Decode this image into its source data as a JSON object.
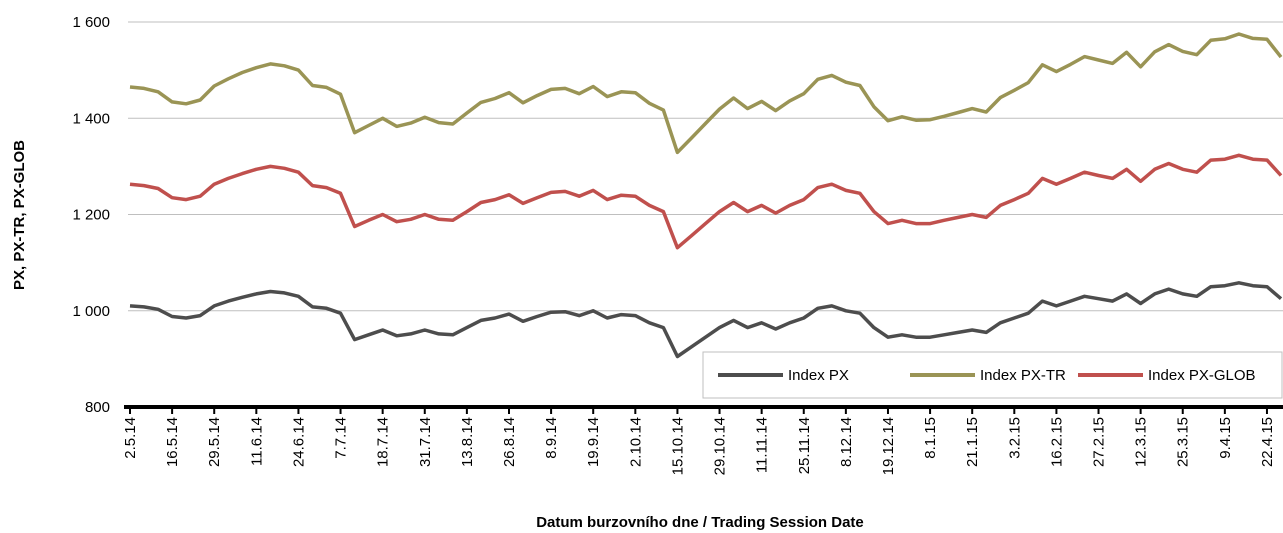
{
  "chart_data": {
    "type": "line",
    "x_label": "Datum burzovního dne / Trading Session Date",
    "y_label": "PX, PX-TR, PX-GLOB",
    "categories": [
      "2.5.14",
      null,
      null,
      "16.5.14",
      null,
      null,
      "29.5.14",
      null,
      null,
      "11.6.14",
      null,
      null,
      "24.6.14",
      null,
      null,
      "7.7.14",
      null,
      null,
      "18.7.14",
      null,
      null,
      "31.7.14",
      null,
      null,
      "13.8.14",
      null,
      null,
      "26.8.14",
      null,
      null,
      "8.9.14",
      null,
      null,
      "19.9.14",
      null,
      null,
      "2.10.14",
      null,
      null,
      "15.10.14",
      null,
      null,
      "29.10.14",
      null,
      null,
      "11.11.14",
      null,
      null,
      "25.11.14",
      null,
      null,
      "8.12.14",
      null,
      null,
      "19.12.14",
      null,
      null,
      "8.1.15",
      null,
      null,
      "21.1.15",
      null,
      null,
      "3.2.15",
      null,
      null,
      "16.2.15",
      null,
      null,
      "27.2.15",
      null,
      null,
      "12.3.15",
      null,
      null,
      "25.3.15",
      null,
      null,
      "9.4.15",
      null,
      null,
      "22.4.15",
      null
    ],
    "series": [
      {
        "name": "Index PX",
        "color": "#4d4d4d",
        "values": [
          1010,
          1008,
          1003,
          988,
          985,
          990,
          1010,
          1020,
          1028,
          1035,
          1040,
          1037,
          1030,
          1008,
          1005,
          995,
          940,
          950,
          960,
          948,
          952,
          960,
          952,
          950,
          965,
          980,
          985,
          993,
          978,
          988,
          997,
          998,
          990,
          1000,
          985,
          992,
          990,
          975,
          965,
          905,
          925,
          945,
          965,
          980,
          965,
          975,
          962,
          975,
          985,
          1005,
          1010,
          1000,
          995,
          965,
          945,
          950,
          945,
          945,
          950,
          955,
          960,
          955,
          975,
          985,
          995,
          1020,
          1010,
          1020,
          1030,
          1025,
          1020,
          1035,
          1015,
          1035,
          1045,
          1035,
          1030,
          1050,
          1052,
          1058,
          1052,
          1050,
          1025
        ]
      },
      {
        "name": "Index PX-TR",
        "color": "#9a9455",
        "values": [
          1465,
          1462,
          1455,
          1434,
          1430,
          1438,
          1467,
          1482,
          1495,
          1505,
          1513,
          1509,
          1500,
          1468,
          1464,
          1450,
          1370,
          1385,
          1400,
          1383,
          1390,
          1402,
          1391,
          1388,
          1411,
          1433,
          1441,
          1453,
          1432,
          1447,
          1460,
          1462,
          1451,
          1466,
          1445,
          1455,
          1453,
          1431,
          1417,
          1329,
          1359,
          1389,
          1419,
          1442,
          1420,
          1435,
          1416,
          1436,
          1451,
          1481,
          1489,
          1475,
          1468,
          1424,
          1395,
          1403,
          1396,
          1397,
          1404,
          1412,
          1420,
          1413,
          1443,
          1458,
          1474,
          1511,
          1497,
          1512,
          1528,
          1521,
          1514,
          1537,
          1507,
          1538,
          1553,
          1539,
          1532,
          1562,
          1565,
          1575,
          1566,
          1564,
          1527
        ]
      },
      {
        "name": "Index PX-GLOB",
        "color": "#c0504d",
        "values": [
          1263,
          1260,
          1254,
          1235,
          1231,
          1238,
          1263,
          1275,
          1285,
          1294,
          1300,
          1296,
          1288,
          1260,
          1256,
          1244,
          1175,
          1188,
          1200,
          1185,
          1190,
          1200,
          1190,
          1188,
          1206,
          1225,
          1231,
          1241,
          1223,
          1235,
          1246,
          1248,
          1238,
          1250,
          1231,
          1240,
          1238,
          1219,
          1206,
          1131,
          1156,
          1181,
          1206,
          1225,
          1206,
          1219,
          1203,
          1219,
          1231,
          1256,
          1263,
          1250,
          1244,
          1206,
          1181,
          1188,
          1181,
          1181,
          1188,
          1194,
          1200,
          1194,
          1219,
          1231,
          1244,
          1275,
          1263,
          1275,
          1288,
          1281,
          1275,
          1294,
          1269,
          1294,
          1306,
          1294,
          1288,
          1313,
          1315,
          1323,
          1315,
          1313,
          1281
        ]
      }
    ],
    "ylim": [
      800,
      1600
    ],
    "yticks": [
      800,
      {
        "value": 1000,
        "label": "1 000"
      },
      {
        "value": 1200,
        "label": "1 200"
      },
      {
        "value": 1400,
        "label": "1 400"
      },
      {
        "value": 1600,
        "label": "1 600"
      }
    ],
    "grid": true,
    "legend": "lower right"
  }
}
